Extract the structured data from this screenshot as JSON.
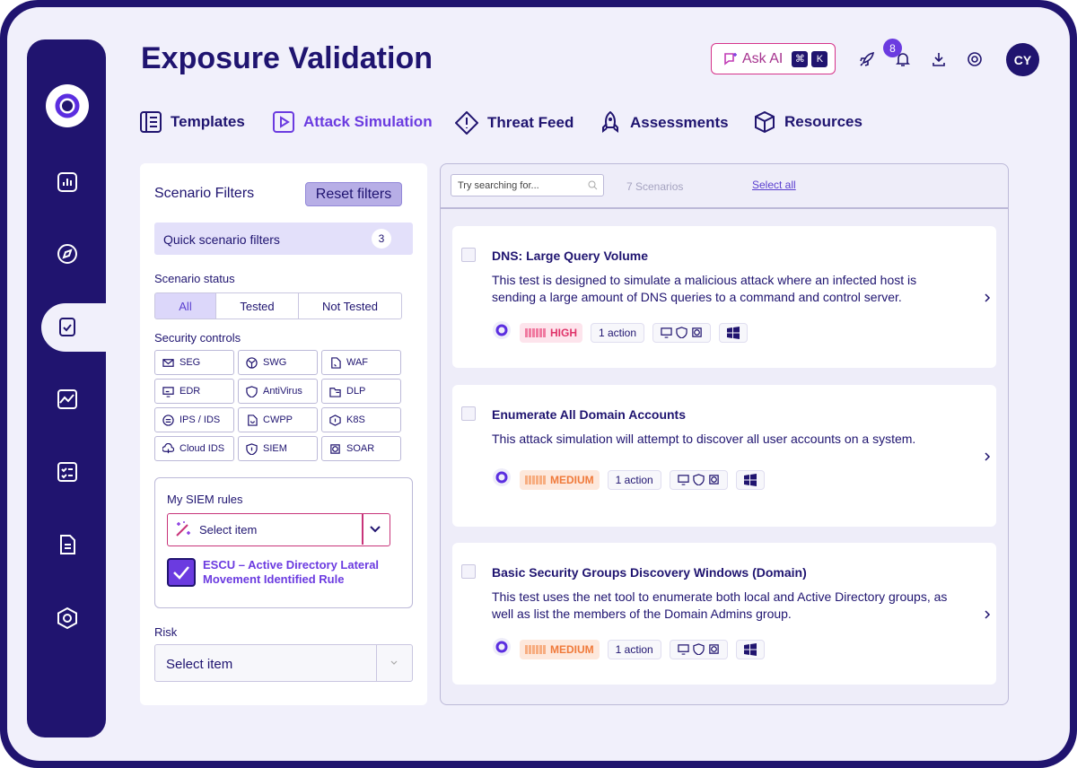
{
  "header": {
    "title": "Exposure Validation",
    "ask_ai": "Ask AI",
    "shortcut": [
      "⌘",
      "K"
    ],
    "notifications": 8,
    "avatar": "CY"
  },
  "tabs": [
    "Templates",
    "Attack Simulation",
    "Threat Feed",
    "Assessments",
    "Resources"
  ],
  "filters": {
    "title": "Scenario Filters",
    "reset": "Reset filters",
    "quick": "Quick scenario filters",
    "quick_count": 3,
    "status_label": "Scenario status",
    "status_options": [
      "All",
      "Tested",
      "Not Tested"
    ],
    "controls_label": "Security controls",
    "controls": [
      "SEG",
      "SWG",
      "WAF",
      "EDR",
      "AntiVirus",
      "DLP",
      "IPS / IDS",
      "CWPP",
      "K8S",
      "Cloud IDS",
      "SIEM",
      "SOAR"
    ],
    "siem_label": "My SIEM rules",
    "siem_select": "Select item",
    "siem_rule": "ESCU – Active Directory Lateral Movement Identified Rule",
    "risk_label": "Risk",
    "risk_select": "Select item"
  },
  "list": {
    "search_placeholder": "Try searching for...",
    "count": "7 Scenarios",
    "select_all": "Select all",
    "cards": [
      {
        "title": "DNS: Large Query Volume",
        "description": "This test is designed to simulate a malicious attack where an infected host is sending a large amount of DNS queries to a command and control server.",
        "risk": "HIGH",
        "actions": "1 action"
      },
      {
        "title": "Enumerate All Domain Accounts",
        "description": "This attack simulation will attempt to discover all user accounts on a system.",
        "risk": "MEDIUM",
        "actions": "1 action"
      },
      {
        "title": "Basic Security Groups Discovery Windows (Domain)",
        "description": "This test uses the net tool to enumerate both local and Active Directory groups, as well as list the members of the Domain Admins group.",
        "risk": "MEDIUM",
        "actions": "1 action"
      }
    ]
  }
}
